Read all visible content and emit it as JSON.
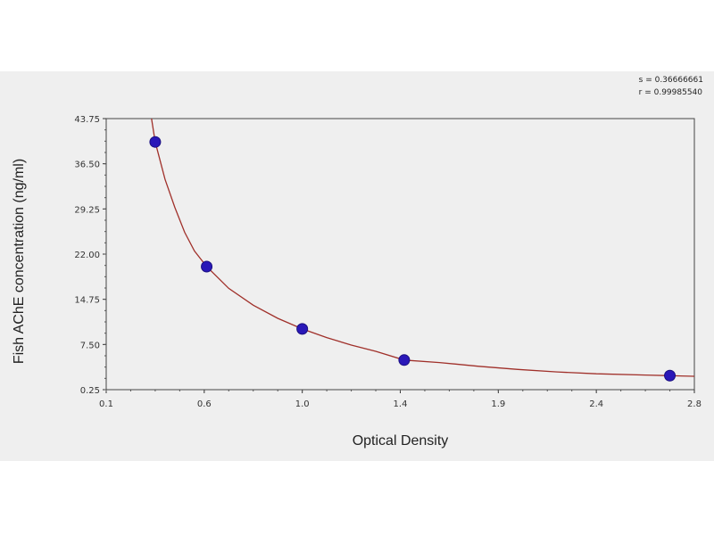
{
  "stats": {
    "s_line": "s = 0.36666661",
    "r_line": "r = 0.99985540"
  },
  "chart_data": {
    "type": "scatter",
    "title": "",
    "xlabel": "Optical Density",
    "ylabel": "Fish AChE concentration (ng/ml)",
    "xlim": [
      0.1,
      2.8
    ],
    "ylim": [
      0.25,
      43.75
    ],
    "x_ticks": [
      "0.1",
      "0.6",
      "1.0",
      "1.4",
      "1.9",
      "2.4",
      "2.8"
    ],
    "x_tick_values": [
      0.1,
      0.6,
      1.0,
      1.4,
      1.9,
      2.4,
      2.8
    ],
    "y_ticks": [
      "0.25",
      "7.50",
      "14.75",
      "22.00",
      "29.25",
      "36.50",
      "43.75"
    ],
    "y_tick_values": [
      0.25,
      7.5,
      14.75,
      22.0,
      29.25,
      36.5,
      43.75
    ],
    "grid": true,
    "points": [
      {
        "x": 0.35,
        "y": 40.0
      },
      {
        "x": 0.61,
        "y": 20.0
      },
      {
        "x": 1.0,
        "y": 10.0
      },
      {
        "x": 1.42,
        "y": 5.0
      },
      {
        "x": 2.7,
        "y": 2.5
      }
    ],
    "curve": [
      {
        "x": 0.32,
        "y": 46.0
      },
      {
        "x": 0.35,
        "y": 40.0
      },
      {
        "x": 0.4,
        "y": 34.0
      },
      {
        "x": 0.45,
        "y": 29.5
      },
      {
        "x": 0.5,
        "y": 25.5
      },
      {
        "x": 0.55,
        "y": 22.5
      },
      {
        "x": 0.61,
        "y": 20.0
      },
      {
        "x": 0.7,
        "y": 16.5
      },
      {
        "x": 0.8,
        "y": 13.8
      },
      {
        "x": 0.9,
        "y": 11.7
      },
      {
        "x": 1.0,
        "y": 10.0
      },
      {
        "x": 1.1,
        "y": 8.6
      },
      {
        "x": 1.2,
        "y": 7.4
      },
      {
        "x": 1.3,
        "y": 6.4
      },
      {
        "x": 1.42,
        "y": 5.0
      },
      {
        "x": 1.6,
        "y": 4.6
      },
      {
        "x": 1.8,
        "y": 4.0
      },
      {
        "x": 2.0,
        "y": 3.5
      },
      {
        "x": 2.2,
        "y": 3.1
      },
      {
        "x": 2.4,
        "y": 2.8
      },
      {
        "x": 2.6,
        "y": 2.6
      },
      {
        "x": 2.7,
        "y": 2.5
      },
      {
        "x": 2.8,
        "y": 2.4
      }
    ],
    "colors": {
      "curve": "#a0302a",
      "point": "#2a18b8",
      "grid": "#9a9a9a",
      "plot_bg": "#efefef",
      "page_bg": "#ffffff"
    }
  }
}
